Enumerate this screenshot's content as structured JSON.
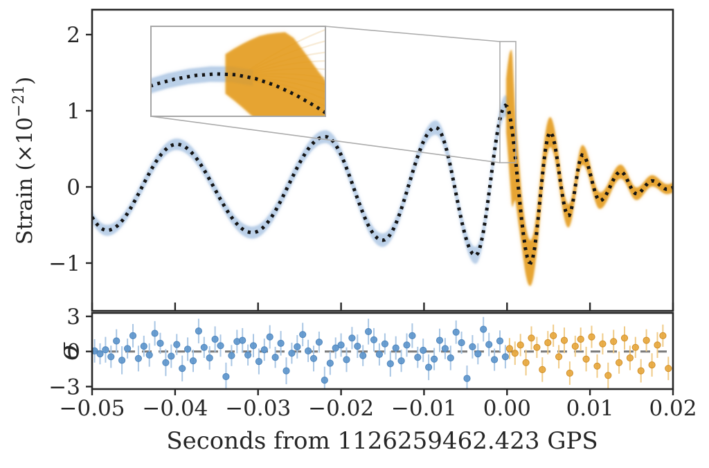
{
  "figure": {
    "xlabel": "Seconds from 1126259462.423 GPS",
    "ylabel_main": {
      "pre": "Strain (×10",
      "sup": "−21",
      "post": ")"
    },
    "ylabel_residual": "σ"
  },
  "axes": {
    "x_range": [
      -0.05,
      0.02
    ],
    "main_y_range": [
      -1.63,
      2.33
    ],
    "residual_y_range": [
      -3.25,
      3.3
    ],
    "x_ticks": [
      {
        "value": -0.05,
        "label": "−0.05"
      },
      {
        "value": -0.04,
        "label": "−0.04"
      },
      {
        "value": -0.03,
        "label": "−0.03"
      },
      {
        "value": -0.02,
        "label": "−0.02"
      },
      {
        "value": -0.01,
        "label": "−0.01"
      },
      {
        "value": 0.0,
        "label": "0.00"
      },
      {
        "value": 0.01,
        "label": "0.01"
      },
      {
        "value": 0.02,
        "label": "0.02"
      }
    ],
    "main_y_ticks": [
      {
        "value": 2,
        "label": "2"
      },
      {
        "value": 1,
        "label": "1"
      },
      {
        "value": 0,
        "label": "0"
      },
      {
        "value": -1,
        "label": "−1"
      }
    ],
    "residual_y_ticks": [
      {
        "value": 3,
        "label": "3"
      },
      {
        "value": 0,
        "label": "0"
      },
      {
        "value": -3,
        "label": "−3"
      }
    ]
  },
  "colors": {
    "axis": "#262626",
    "dotted_template": "#141414",
    "blue_band_core": "#b3cbe6",
    "blue_band_halo": "#d6e2f1",
    "orange_band_core": "#e2940f",
    "orange_band_halo": "#f2c577",
    "blue_point": "#5b94cb",
    "blue_point_edge": "#4f86bd",
    "blue_errbar": "#a9c6e4",
    "orange_point": "#e7a63b",
    "orange_point_edge": "#d18f28",
    "orange_errbar": "#f0cb87",
    "zero_dash_line": "#7a7a7a",
    "inset_border": "#a6a6a6",
    "connector": "#ababab",
    "fan_strand": "#dfa94e",
    "blue_strand": "#a9c6e4"
  },
  "chart_data": {
    "type": "line",
    "title": "",
    "xlabel": "Seconds from 1126259462.423 GPS",
    "ylabel": "Strain (×10⁻²¹)",
    "x_range": [
      -0.05,
      0.02
    ],
    "main_ylim": [
      -1.63,
      2.33
    ],
    "grid": false,
    "legend": false,
    "series": [
      {
        "name": "best-fit-template-dotted",
        "style": "dotted-black",
        "extrema_t_h": [
          [
            -0.0545,
            0.35
          ],
          [
            -0.0482,
            -0.57
          ],
          [
            -0.0398,
            0.56
          ],
          [
            -0.0307,
            -0.6
          ],
          [
            -0.0219,
            0.66
          ],
          [
            -0.015,
            -0.7
          ],
          [
            -0.0086,
            0.78
          ],
          [
            -0.0038,
            -0.9
          ],
          [
            -0.00015,
            1.07
          ],
          [
            0.0028,
            -1.0
          ],
          [
            0.0052,
            0.72
          ],
          [
            0.0074,
            -0.38
          ],
          [
            0.0091,
            0.42
          ],
          [
            0.0112,
            -0.18
          ],
          [
            0.0137,
            0.2
          ],
          [
            0.0156,
            -0.09
          ],
          [
            0.0175,
            0.08
          ],
          [
            0.0193,
            -0.03
          ],
          [
            0.0208,
            0.02
          ]
        ]
      },
      {
        "name": "pre-merger-ensemble-band",
        "color_key": "blue",
        "t_range": [
          -0.0512,
          0.0002
        ],
        "band_halfwidth_t_w": [
          [
            -0.0512,
            0.07
          ],
          [
            -0.03,
            0.08
          ],
          [
            -0.01,
            0.09
          ],
          [
            -0.004,
            0.11
          ],
          [
            0.0002,
            0.14
          ]
        ]
      },
      {
        "name": "post-merger-ensemble-band",
        "color_key": "orange",
        "t_range": [
          -0.0001,
          0.0205
        ],
        "band_halfwidth_t_w": [
          [
            -0.0001,
            0.35
          ],
          [
            0.0003,
            0.8
          ],
          [
            0.0006,
            1.05
          ],
          [
            0.001,
            0.55
          ],
          [
            0.0018,
            0.33
          ],
          [
            0.0028,
            0.3
          ],
          [
            0.005,
            0.2
          ],
          [
            0.008,
            0.14
          ],
          [
            0.012,
            0.1
          ],
          [
            0.016,
            0.08
          ],
          [
            0.0205,
            0.06
          ]
        ]
      }
    ],
    "inset": {
      "t_window": [
        -0.00092,
        0.001
      ],
      "h_window": [
        0.32,
        1.91
      ],
      "fan_start_t_h": [
        5e-05,
        1.02
      ],
      "fan_end_t": 0.001,
      "fan_end_values": [
        1.85,
        1.65,
        1.45,
        1.3,
        1.15,
        1.0,
        0.88,
        0.75,
        0.62,
        0.5,
        0.4
      ],
      "blue_strand_offsets": [
        -0.1,
        -0.06,
        -0.025,
        0.025,
        0.06,
        0.1
      ]
    },
    "residuals": {
      "ylabel": "σ",
      "ylim": [
        -3.25,
        3.3
      ],
      "zero_line": 0,
      "blue_points_t_sigma_err": [
        [
          -0.0497,
          0.05,
          1.0
        ],
        [
          -0.04904,
          -0.2,
          0.9
        ],
        [
          -0.04838,
          0.15,
          1.1
        ],
        [
          -0.04772,
          -0.45,
          0.95
        ],
        [
          -0.04706,
          0.9,
          1.0
        ],
        [
          -0.0464,
          -0.75,
          1.2
        ],
        [
          -0.04574,
          0.25,
          0.85
        ],
        [
          -0.04508,
          1.35,
          1.0
        ],
        [
          -0.04442,
          -0.6,
          1.1
        ],
        [
          -0.04376,
          0.45,
          0.9
        ],
        [
          -0.0431,
          -0.3,
          1.0
        ],
        [
          -0.04244,
          1.55,
          1.05
        ],
        [
          -0.04178,
          0.7,
          0.9
        ],
        [
          -0.04112,
          -0.95,
          1.15
        ],
        [
          -0.04046,
          -0.4,
          1.0
        ],
        [
          -0.0398,
          0.6,
          0.9
        ],
        [
          -0.03914,
          -1.45,
          1.1
        ],
        [
          -0.03848,
          0.2,
          1.0
        ],
        [
          -0.03782,
          -0.8,
          0.95
        ],
        [
          -0.03716,
          1.75,
          1.05
        ],
        [
          -0.0365,
          0.35,
          0.9
        ],
        [
          -0.03584,
          -0.55,
          1.0
        ],
        [
          -0.03518,
          1.05,
          1.1
        ],
        [
          -0.03452,
          0.5,
          0.95
        ],
        [
          -0.03386,
          -2.15,
          1.2
        ],
        [
          -0.0332,
          -0.35,
          0.9
        ],
        [
          -0.03254,
          0.85,
          1.0
        ],
        [
          -0.03188,
          0.95,
          1.05
        ],
        [
          -0.03122,
          -0.3,
          0.9
        ],
        [
          -0.03056,
          0.5,
          1.0
        ],
        [
          -0.0299,
          -0.85,
          1.1
        ],
        [
          -0.02924,
          0.15,
          0.95
        ],
        [
          -0.02858,
          1.25,
          1.0
        ],
        [
          -0.02792,
          -0.5,
          0.9
        ],
        [
          -0.02726,
          0.7,
          1.05
        ],
        [
          -0.0266,
          -1.65,
          1.15
        ],
        [
          -0.02594,
          -0.15,
          0.9
        ],
        [
          -0.02528,
          0.4,
          1.0
        ],
        [
          -0.02462,
          1.45,
          1.0
        ],
        [
          -0.02396,
          0.05,
          0.95
        ],
        [
          -0.0233,
          -0.6,
          1.1
        ],
        [
          -0.02264,
          0.8,
          0.9
        ],
        [
          -0.02198,
          -2.45,
          1.15
        ],
        [
          -0.02132,
          -1.0,
          1.0
        ],
        [
          -0.02066,
          0.3,
          0.9
        ],
        [
          -0.02,
          0.55,
          1.0
        ],
        [
          -0.01934,
          -0.7,
          1.05
        ],
        [
          -0.01868,
          1.15,
          0.95
        ],
        [
          -0.01802,
          0.45,
          1.0
        ],
        [
          -0.01736,
          -0.35,
          0.9
        ],
        [
          -0.0167,
          1.7,
          1.1
        ],
        [
          -0.01604,
          1.0,
          1.0
        ],
        [
          -0.01538,
          -0.25,
          0.95
        ],
        [
          -0.01472,
          0.65,
          0.9
        ],
        [
          -0.01406,
          -1.05,
          1.1
        ],
        [
          -0.0134,
          0.3,
          1.0
        ],
        [
          -0.01274,
          -0.8,
          0.95
        ],
        [
          -0.01208,
          0.55,
          1.0
        ],
        [
          -0.01142,
          1.35,
          1.05
        ],
        [
          -0.01076,
          -0.5,
          0.9
        ],
        [
          -0.0101,
          0.1,
          1.0
        ],
        [
          -0.00944,
          -1.35,
          1.1
        ],
        [
          -0.00878,
          -0.65,
          0.95
        ],
        [
          -0.00812,
          0.95,
          1.0
        ],
        [
          -0.00746,
          0.25,
          0.9
        ],
        [
          -0.0068,
          -0.55,
          1.05
        ],
        [
          -0.00614,
          1.65,
          1.0
        ],
        [
          -0.00548,
          0.75,
          0.95
        ],
        [
          -0.00482,
          -2.3,
          1.1
        ],
        [
          -0.00416,
          0.4,
          1.0
        ],
        [
          -0.0035,
          -0.2,
          0.9
        ],
        [
          -0.00284,
          1.9,
          1.05
        ],
        [
          -0.00218,
          0.6,
          1.0
        ],
        [
          -0.00152,
          -0.7,
          0.95
        ],
        [
          -0.00086,
          0.9,
          0.9
        ],
        [
          -0.0002,
          -0.45,
          1.0
        ]
      ],
      "orange_points_t_sigma_err": [
        [
          0.0003,
          0.25,
          0.9
        ],
        [
          0.00096,
          -0.15,
          1.0
        ],
        [
          0.00162,
          0.55,
          0.95
        ],
        [
          0.00228,
          -0.95,
          1.1
        ],
        [
          0.00294,
          1.15,
          1.0
        ],
        [
          0.0036,
          0.35,
          0.9
        ],
        [
          0.00426,
          -1.55,
          1.05
        ],
        [
          0.00492,
          0.75,
          1.0
        ],
        [
          0.00558,
          1.35,
          0.95
        ],
        [
          0.00624,
          -0.45,
          1.0
        ],
        [
          0.0069,
          0.95,
          1.1
        ],
        [
          0.00756,
          -1.85,
          1.0
        ],
        [
          0.00822,
          0.45,
          0.9
        ],
        [
          0.00888,
          1.05,
          1.0
        ],
        [
          0.00954,
          -0.65,
          1.05
        ],
        [
          0.0102,
          1.25,
          0.95
        ],
        [
          0.01086,
          -1.25,
          1.0
        ],
        [
          0.01152,
          0.65,
          0.9
        ],
        [
          0.01218,
          -2.05,
          1.1
        ],
        [
          0.01284,
          0.85,
          1.0
        ],
        [
          0.0135,
          -0.95,
          0.95
        ],
        [
          0.01416,
          1.15,
          1.0
        ],
        [
          0.01482,
          -0.55,
          1.05
        ],
        [
          0.01548,
          0.35,
          0.9
        ],
        [
          0.01614,
          -1.65,
          1.0
        ],
        [
          0.0168,
          0.95,
          0.95
        ],
        [
          0.01746,
          -1.15,
          1.0
        ],
        [
          0.01812,
          0.55,
          1.1
        ],
        [
          0.01878,
          1.35,
          0.95
        ],
        [
          0.01944,
          -1.45,
          1.0
        ]
      ]
    }
  }
}
